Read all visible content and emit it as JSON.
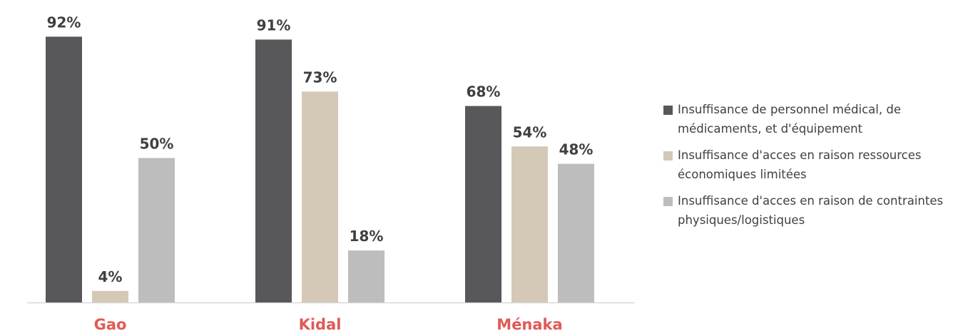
{
  "chart_data": {
    "type": "bar",
    "categories": [
      "Gao",
      "Kidal",
      "Ménaka"
    ],
    "series": [
      {
        "name": "Insuffisance de personnel médical, de médicaments, et d'équipement",
        "values": [
          92,
          91,
          68
        ],
        "labels": [
          "92%",
          "91%",
          "68%"
        ],
        "color": "#58585a"
      },
      {
        "name": "Insuffisance d'acces en raison ressources économiques limitées",
        "values": [
          4,
          73,
          54
        ],
        "labels": [
          "4%",
          "73%",
          "54%"
        ],
        "color": "#d3c9b6"
      },
      {
        "name": "Insuffisance d'acces en raison de contraintes physiques/logistiques",
        "values": [
          50,
          18,
          48
        ],
        "labels": [
          "50%",
          "18%",
          "48%"
        ],
        "color": "#bdbdbd"
      }
    ],
    "ylim": [
      0,
      100
    ],
    "grid": false,
    "legend_position": "right",
    "category_label_color": "#e05a56",
    "value_label_color": "#404040",
    "axis_color": "#d9d9d9"
  }
}
